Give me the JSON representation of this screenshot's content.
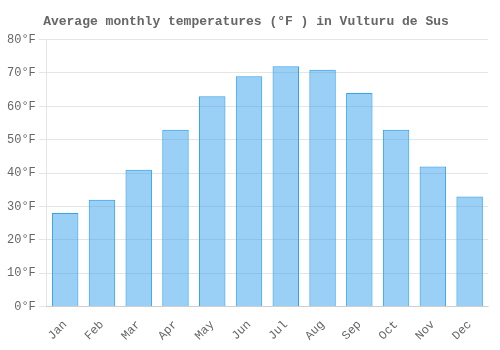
{
  "chart_data": {
    "type": "bar",
    "title": "Average monthly temperatures (°F ) in Vulturu de Sus",
    "categories": [
      "Jan",
      "Feb",
      "Mar",
      "Apr",
      "May",
      "Jun",
      "Jul",
      "Aug",
      "Sep",
      "Oct",
      "Nov",
      "Dec"
    ],
    "values": [
      28,
      32,
      41,
      53,
      63,
      69,
      72,
      71,
      64,
      53,
      42,
      33
    ],
    "ylim": [
      0,
      80
    ],
    "yticks": [
      {
        "value": 0,
        "label": "0°F"
      },
      {
        "value": 10,
        "label": "10°F"
      },
      {
        "value": 20,
        "label": "20°F"
      },
      {
        "value": 30,
        "label": "30°F"
      },
      {
        "value": 40,
        "label": "40°F"
      },
      {
        "value": 50,
        "label": "50°F"
      },
      {
        "value": 60,
        "label": "60°F"
      },
      {
        "value": 70,
        "label": "70°F"
      },
      {
        "value": 80,
        "label": "80°F"
      }
    ],
    "grid": true
  }
}
